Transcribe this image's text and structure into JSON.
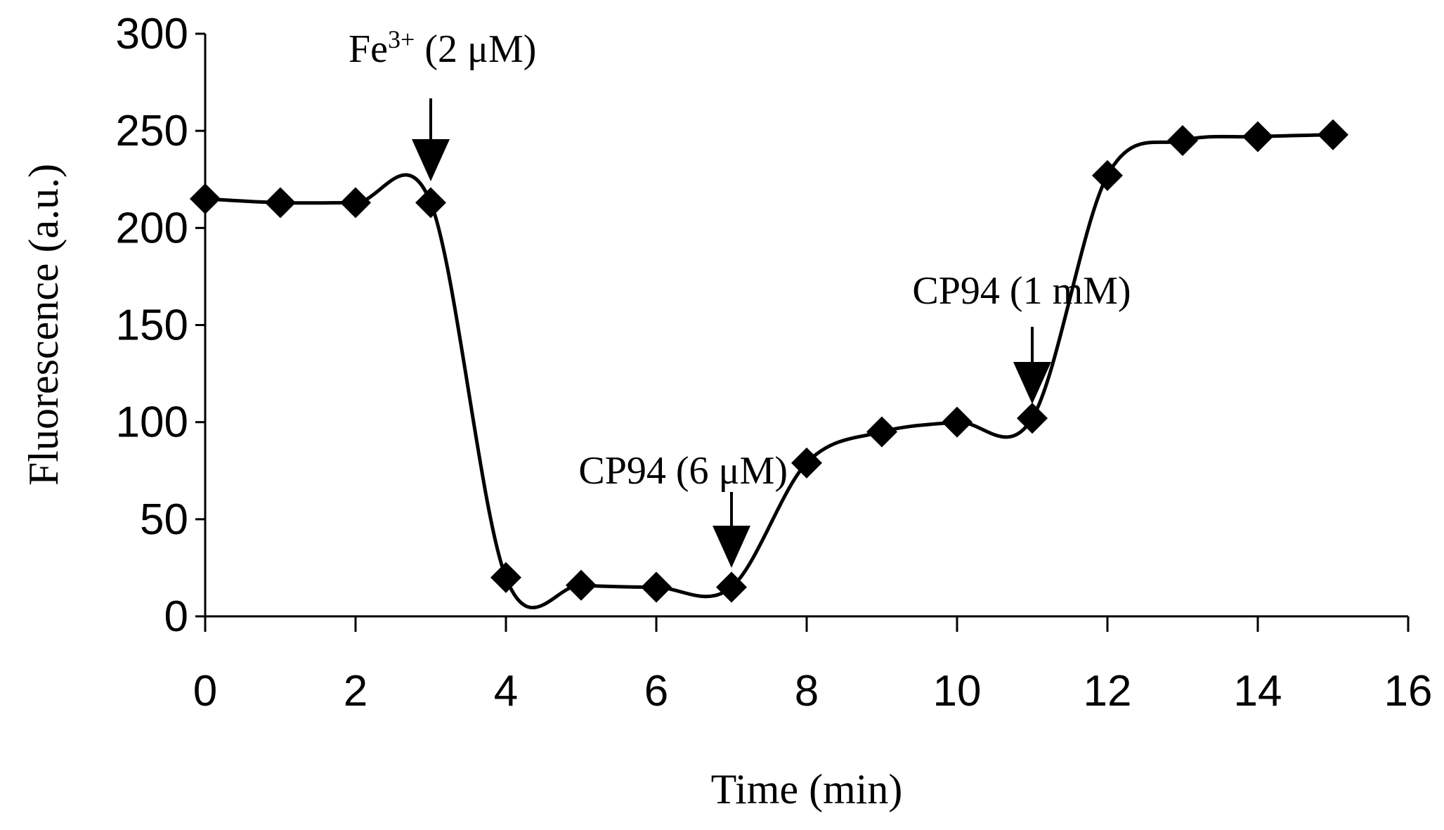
{
  "chart_data": {
    "type": "line",
    "title": "",
    "xlabel": "Time (min)",
    "ylabel": "Fluorescence (a.u.)",
    "xlim": [
      0,
      16
    ],
    "ylim": [
      0,
      300
    ],
    "xticks": [
      0,
      2,
      4,
      6,
      8,
      10,
      12,
      14,
      16
    ],
    "yticks": [
      0,
      50,
      100,
      150,
      200,
      250,
      300
    ],
    "grid": false,
    "legend": "none",
    "marker": "diamond",
    "line_style": "smoothed",
    "series": [
      {
        "x": [
          0,
          1,
          2,
          3,
          4,
          5,
          6,
          7,
          8,
          9,
          10,
          11,
          12,
          13,
          14,
          15
        ],
        "y": [
          215,
          213,
          213,
          213,
          20,
          16,
          15,
          15,
          79,
          95,
          100,
          102,
          227,
          245,
          247,
          248
        ]
      }
    ],
    "annotations": [
      {
        "label_main": "Fe",
        "label_sup": "3+",
        "label_rest": " (2 μM)",
        "x": 3
      },
      {
        "label": "CP94 (6 μM)",
        "x": 7
      },
      {
        "label": "CP94 (1 mM)",
        "x": 11
      }
    ]
  }
}
